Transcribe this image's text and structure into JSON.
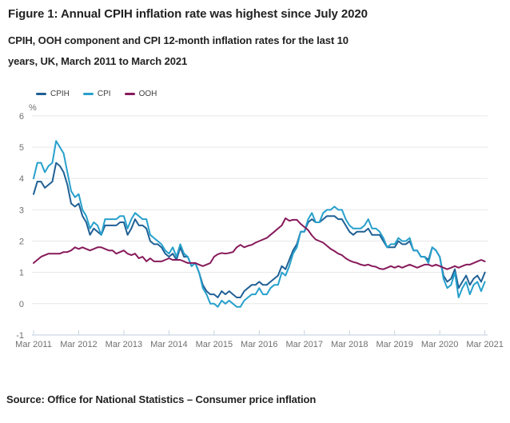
{
  "figure": {
    "title": "Figure 1: Annual CPIH inflation rate was highest since July 2020",
    "subtitle_lines": [
      "CPIH, OOH component and CPI 12-month inflation rates for the last 10",
      "years, UK, March 2011 to March 2021"
    ],
    "source": "Source: Office for National Statistics – Consumer price inflation"
  },
  "legend": [
    {
      "label": "CPIH",
      "color": "#206095"
    },
    {
      "label": "CPI",
      "color": "#27A0CC"
    },
    {
      "label": "OOH",
      "color": "#871A5B"
    }
  ],
  "colors": {
    "gridline": "#e7e7e7",
    "axis_line": "#c7d3e1",
    "axis_text": "#707071",
    "body_text": "#222222"
  },
  "chart_data": {
    "type": "line",
    "title": "CPIH, OOH component and CPI 12-month inflation rates, UK, March 2011 to March 2021",
    "ylabel": "%",
    "ylim": [
      -1,
      6
    ],
    "y_ticks": [
      6,
      5,
      4,
      3,
      2,
      1,
      0,
      -1
    ],
    "x_tick_labels": [
      "Mar 2011",
      "Mar 2012",
      "Mar 2013",
      "Mar 2014",
      "Mar 2015",
      "Mar 2016",
      "Mar 2017",
      "Mar 2018",
      "Mar 2019",
      "Mar 2020",
      "Mar 2021"
    ],
    "frequency": "monthly",
    "x_range": [
      "Mar 2011",
      "Mar 2021"
    ],
    "grid": true,
    "legend_position": "top",
    "series": [
      {
        "name": "CPIH",
        "color": "#206095",
        "values": [
          3.5,
          3.9,
          3.9,
          3.7,
          3.8,
          3.9,
          4.5,
          4.4,
          4.2,
          3.8,
          3.2,
          3.1,
          3.2,
          2.8,
          2.6,
          2.2,
          2.4,
          2.3,
          2.2,
          2.5,
          2.5,
          2.5,
          2.5,
          2.6,
          2.6,
          2.2,
          2.4,
          2.7,
          2.5,
          2.5,
          2.4,
          2.0,
          1.9,
          1.9,
          1.8,
          1.6,
          1.5,
          1.6,
          1.4,
          1.8,
          1.5,
          1.5,
          1.2,
          1.3,
          1.0,
          0.6,
          0.4,
          0.3,
          0.3,
          0.2,
          0.4,
          0.3,
          0.4,
          0.3,
          0.2,
          0.2,
          0.4,
          0.5,
          0.6,
          0.6,
          0.7,
          0.6,
          0.6,
          0.7,
          0.8,
          0.9,
          1.2,
          1.1,
          1.4,
          1.7,
          1.9,
          2.3,
          2.3,
          2.6,
          2.7,
          2.6,
          2.6,
          2.7,
          2.8,
          2.8,
          2.8,
          2.7,
          2.7,
          2.5,
          2.3,
          2.2,
          2.3,
          2.3,
          2.3,
          2.4,
          2.2,
          2.2,
          2.2,
          2.0,
          1.8,
          1.8,
          1.8,
          2.0,
          1.9,
          1.9,
          2.0,
          1.7,
          1.7,
          1.5,
          1.5,
          1.4,
          1.8,
          1.7,
          1.5,
          0.9,
          0.7,
          0.8,
          1.1,
          0.5,
          0.7,
          0.9,
          0.6,
          0.8,
          0.9,
          0.7,
          1.0
        ]
      },
      {
        "name": "CPI",
        "color": "#27A0CC",
        "values": [
          4.0,
          4.5,
          4.5,
          4.2,
          4.4,
          4.5,
          5.2,
          5.0,
          4.8,
          4.2,
          3.6,
          3.4,
          3.5,
          3.0,
          2.8,
          2.4,
          2.6,
          2.5,
          2.2,
          2.7,
          2.7,
          2.7,
          2.7,
          2.8,
          2.8,
          2.4,
          2.7,
          2.9,
          2.8,
          2.7,
          2.7,
          2.2,
          2.1,
          2.0,
          1.9,
          1.7,
          1.6,
          1.8,
          1.5,
          1.9,
          1.6,
          1.5,
          1.2,
          1.3,
          1.0,
          0.5,
          0.3,
          0.0,
          0.0,
          -0.1,
          0.1,
          0.0,
          0.1,
          0.0,
          -0.1,
          -0.1,
          0.1,
          0.2,
          0.3,
          0.3,
          0.5,
          0.3,
          0.3,
          0.5,
          0.6,
          0.6,
          1.0,
          0.9,
          1.2,
          1.6,
          1.8,
          2.3,
          2.3,
          2.7,
          2.9,
          2.6,
          2.6,
          2.9,
          3.0,
          3.0,
          3.1,
          3.0,
          3.0,
          2.7,
          2.5,
          2.4,
          2.4,
          2.4,
          2.5,
          2.7,
          2.4,
          2.4,
          2.3,
          2.1,
          1.8,
          1.9,
          1.9,
          2.1,
          2.0,
          2.0,
          2.1,
          1.7,
          1.7,
          1.5,
          1.5,
          1.3,
          1.8,
          1.7,
          1.5,
          0.8,
          0.5,
          0.6,
          1.0,
          0.2,
          0.5,
          0.7,
          0.3,
          0.6,
          0.7,
          0.4,
          0.7
        ]
      },
      {
        "name": "OOH",
        "color": "#871A5B",
        "values": [
          1.3,
          1.4,
          1.5,
          1.55,
          1.6,
          1.6,
          1.6,
          1.6,
          1.65,
          1.65,
          1.7,
          1.8,
          1.75,
          1.8,
          1.75,
          1.7,
          1.75,
          1.8,
          1.8,
          1.75,
          1.7,
          1.7,
          1.6,
          1.65,
          1.7,
          1.6,
          1.55,
          1.6,
          1.45,
          1.5,
          1.35,
          1.45,
          1.35,
          1.35,
          1.35,
          1.4,
          1.45,
          1.4,
          1.4,
          1.4,
          1.35,
          1.3,
          1.3,
          1.3,
          1.25,
          1.2,
          1.25,
          1.3,
          1.5,
          1.58,
          1.62,
          1.6,
          1.62,
          1.65,
          1.8,
          1.88,
          1.8,
          1.85,
          1.88,
          1.95,
          2.0,
          2.05,
          2.1,
          2.2,
          2.3,
          2.4,
          2.5,
          2.73,
          2.65,
          2.68,
          2.68,
          2.55,
          2.45,
          2.35,
          2.18,
          2.05,
          2.0,
          1.95,
          1.85,
          1.75,
          1.68,
          1.6,
          1.55,
          1.45,
          1.38,
          1.33,
          1.3,
          1.25,
          1.22,
          1.25,
          1.2,
          1.18,
          1.12,
          1.1,
          1.15,
          1.2,
          1.15,
          1.2,
          1.15,
          1.2,
          1.25,
          1.2,
          1.15,
          1.2,
          1.25,
          1.25,
          1.2,
          1.25,
          1.2,
          1.15,
          1.1,
          1.15,
          1.2,
          1.15,
          1.2,
          1.25,
          1.25,
          1.3,
          1.35,
          1.4,
          1.35
        ]
      }
    ]
  }
}
